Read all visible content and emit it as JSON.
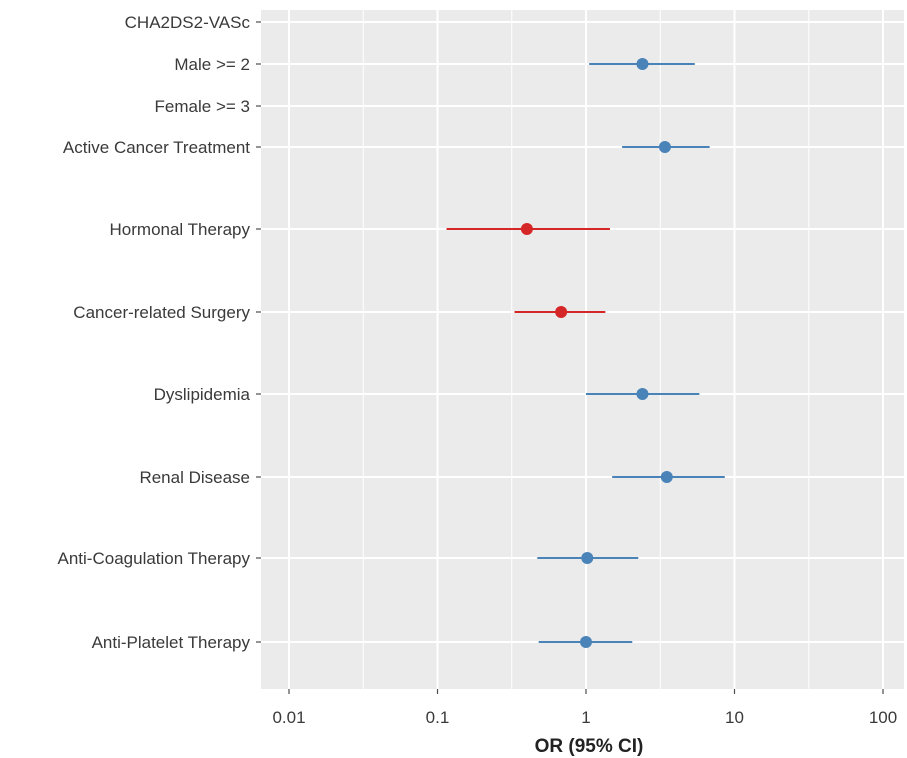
{
  "chart_data": {
    "type": "forest",
    "xlabel": "OR (95% CI)",
    "x_scale": "log10",
    "xlim": [
      0.005,
      150
    ],
    "x_ticks": [
      {
        "value": 0.01,
        "label": "0.01"
      },
      {
        "value": 0.1,
        "label": "0.1"
      },
      {
        "value": 1,
        "label": "1"
      },
      {
        "value": 10,
        "label": "10"
      },
      {
        "value": 100,
        "label": "100"
      }
    ],
    "grid": true,
    "colors": {
      "increased_risk": "#4a83b8",
      "decreased_risk": "#d62728",
      "panel_background": "#ebebeb",
      "gridline": "#ffffff"
    },
    "rows": [
      {
        "label": "CHA2DS2-VASc",
        "estimate": null,
        "lower": null,
        "upper": null,
        "color": null
      },
      {
        "label": "Male >= 2",
        "estimate": 2.4,
        "lower": 1.05,
        "upper": 5.4,
        "color": "#4a83b8"
      },
      {
        "label": "Female >= 3",
        "estimate": null,
        "lower": null,
        "upper": null,
        "color": null
      },
      {
        "label": "Active Cancer Treatment",
        "estimate": 3.4,
        "lower": 1.75,
        "upper": 6.8,
        "color": "#4a83b8"
      },
      {
        "label": "Hormonal Therapy",
        "estimate": 0.4,
        "lower": 0.115,
        "upper": 1.45,
        "color": "#d62728"
      },
      {
        "label": "Cancer-related Surgery",
        "estimate": 0.68,
        "lower": 0.33,
        "upper": 1.35,
        "color": "#d62728"
      },
      {
        "label": "Dyslipidemia",
        "estimate": 2.4,
        "lower": 1.0,
        "upper": 5.8,
        "color": "#4a83b8"
      },
      {
        "label": "Renal Disease",
        "estimate": 3.5,
        "lower": 1.5,
        "upper": 8.6,
        "color": "#4a83b8"
      },
      {
        "label": "Anti-Coagulation Therapy",
        "estimate": 1.02,
        "lower": 0.47,
        "upper": 2.25,
        "color": "#4a83b8"
      },
      {
        "label": "Anti-Platelet Therapy",
        "estimate": 1.0,
        "lower": 0.48,
        "upper": 2.05,
        "color": "#4a83b8"
      }
    ]
  }
}
